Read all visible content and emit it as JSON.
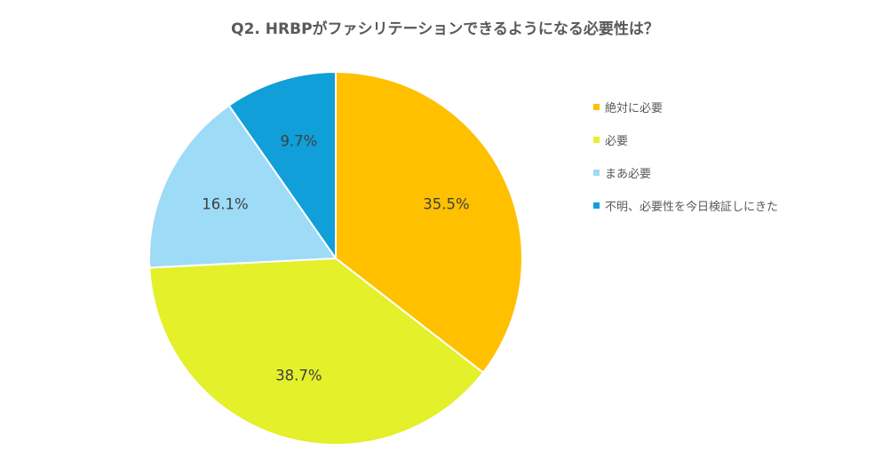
{
  "chart_data": {
    "type": "pie",
    "title": "Q2. HRBPがファシリテーションできるようになる必要性は？",
    "categories": [
      "絶対に必要",
      "必要",
      "まあ必要",
      "不明、必要性を今日検証しにきた"
    ],
    "values": [
      35.5,
      38.7,
      16.1,
      9.7
    ],
    "labels": [
      "35.5%",
      "38.7%",
      "16.1%",
      "9.7%"
    ],
    "colors": [
      "#FFC000",
      "#E3F02A",
      "#9DDBF7",
      "#109FD9"
    ],
    "start_angle": "12 o'clock",
    "direction": "clockwise",
    "legend_position": "right"
  }
}
